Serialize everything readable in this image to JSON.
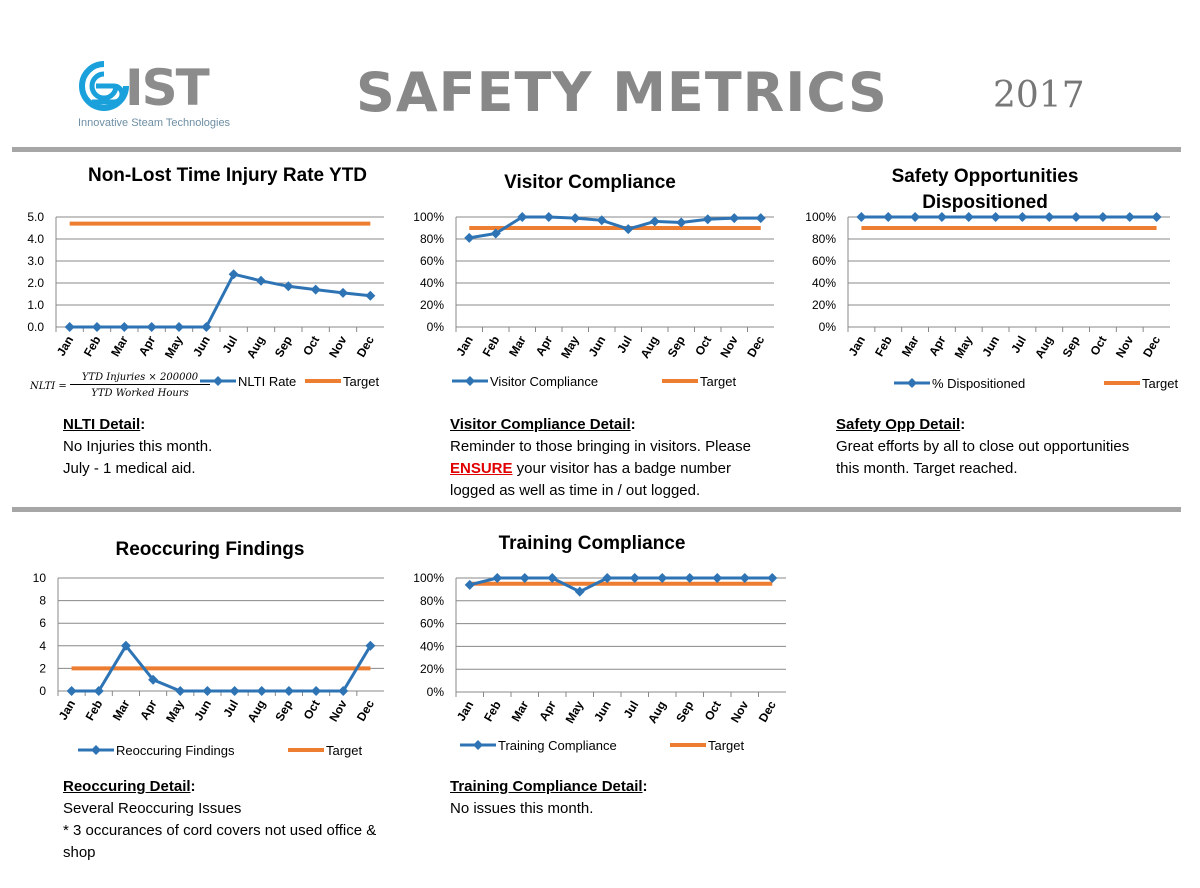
{
  "header": {
    "logo_word": "IST",
    "logo_subtitle": "Innovative Steam Technologies",
    "title": "SAFETY METRICS",
    "year": "2017"
  },
  "colors": {
    "series": "#2e74b5",
    "target": "#ed7d31",
    "grid": "#888888",
    "divider": "#a6a6a6"
  },
  "formula": {
    "lhs": "NLTI =",
    "numerator": "YTD Injuries × 200000",
    "denominator": "YTD Worked Hours"
  },
  "details": {
    "nlti": {
      "heading": "NLTI Detail",
      "lines": [
        "No Injuries this month.",
        "July - 1 medical aid."
      ]
    },
    "visitor": {
      "heading": "Visitor Compliance Detail",
      "line1": "Reminder to those bringing in visitors. Please",
      "emph": "ENSURE",
      "line2_rest": " your visitor has a badge number",
      "line3": "logged as well as time in / out logged."
    },
    "safety": {
      "heading": "Safety Opp Detail",
      "lines": [
        "Great efforts by all to close out opportunities",
        "this month. Target reached."
      ]
    },
    "reoccur": {
      "heading": "Reoccuring Detail",
      "lines": [
        "Several Reoccuring Issues",
        "* 3 occurances of cord covers not used office &",
        "shop"
      ]
    },
    "training": {
      "heading": "Training Compliance Detail",
      "lines": [
        "No issues this month."
      ]
    }
  },
  "chart_data": [
    {
      "type": "line",
      "title": "Non-Lost Time Injury Rate YTD",
      "categories": [
        "Jan",
        "Feb",
        "Mar",
        "Apr",
        "May",
        "Jun",
        "Jul",
        "Aug",
        "Sep",
        "Oct",
        "Nov",
        "Dec"
      ],
      "yticks": [
        "0.0",
        "1.0",
        "2.0",
        "3.0",
        "4.0",
        "5.0"
      ],
      "ylim": [
        0,
        5
      ],
      "series": [
        {
          "name": "NLTI Rate",
          "values": [
            0,
            0,
            0,
            0,
            0,
            0,
            2.4,
            2.1,
            1.85,
            1.7,
            1.55,
            1.42
          ]
        },
        {
          "name": "Target",
          "values": [
            4.7,
            4.7,
            4.7,
            4.7,
            4.7,
            4.7,
            4.7,
            4.7,
            4.7,
            4.7,
            4.7,
            4.7
          ]
        }
      ],
      "legend": "bottom"
    },
    {
      "type": "line",
      "title": "Visitor Compliance",
      "categories": [
        "Jan",
        "Feb",
        "Mar",
        "Apr",
        "May",
        "Jun",
        "Jul",
        "Aug",
        "Sep",
        "Oct",
        "Nov",
        "Dec"
      ],
      "yticks": [
        "0%",
        "20%",
        "40%",
        "60%",
        "80%",
        "100%"
      ],
      "ylim": [
        0,
        100
      ],
      "series": [
        {
          "name": "Visitor Compliance",
          "values": [
            81,
            85,
            100,
            100,
            99,
            97,
            89,
            96,
            95,
            98,
            99,
            99
          ]
        },
        {
          "name": "Target",
          "values": [
            90,
            90,
            90,
            90,
            90,
            90,
            90,
            90,
            90,
            90,
            90,
            90
          ]
        }
      ],
      "legend": "bottom"
    },
    {
      "type": "line",
      "title": "Safety Opportunities Dispositioned",
      "categories": [
        "Jan",
        "Feb",
        "Mar",
        "Apr",
        "May",
        "Jun",
        "Jul",
        "Aug",
        "Sep",
        "Oct",
        "Nov",
        "Dec"
      ],
      "yticks": [
        "0%",
        "20%",
        "40%",
        "60%",
        "80%",
        "100%"
      ],
      "ylim": [
        0,
        100
      ],
      "series": [
        {
          "name": "% Dispositioned",
          "values": [
            100,
            100,
            100,
            100,
            100,
            100,
            100,
            100,
            100,
            100,
            100,
            100
          ]
        },
        {
          "name": "Target",
          "values": [
            90,
            90,
            90,
            90,
            90,
            90,
            90,
            90,
            90,
            90,
            90,
            90
          ]
        }
      ],
      "legend": "bottom"
    },
    {
      "type": "line",
      "title": "Reoccuring Findings",
      "categories": [
        "Jan",
        "Feb",
        "Mar",
        "Apr",
        "May",
        "Jun",
        "Jul",
        "Aug",
        "Sep",
        "Oct",
        "Nov",
        "Dec"
      ],
      "yticks": [
        "0",
        "2",
        "4",
        "6",
        "8",
        "10"
      ],
      "ylim": [
        0,
        10
      ],
      "series": [
        {
          "name": "Reoccuring Findings",
          "values": [
            0,
            0,
            4,
            1,
            0,
            0,
            0,
            0,
            0,
            0,
            0,
            4
          ]
        },
        {
          "name": "Target",
          "values": [
            2,
            2,
            2,
            2,
            2,
            2,
            2,
            2,
            2,
            2,
            2,
            2
          ]
        }
      ],
      "legend": "bottom"
    },
    {
      "type": "line",
      "title": "Training Compliance",
      "categories": [
        "Jan",
        "Feb",
        "Mar",
        "Apr",
        "May",
        "Jun",
        "Jul",
        "Aug",
        "Sep",
        "Oct",
        "Nov",
        "Dec"
      ],
      "yticks": [
        "0%",
        "20%",
        "40%",
        "60%",
        "80%",
        "100%"
      ],
      "ylim": [
        0,
        100
      ],
      "series": [
        {
          "name": "Training Compliance",
          "values": [
            94,
            100,
            100,
            100,
            88,
            100,
            100,
            100,
            100,
            100,
            100,
            100
          ]
        },
        {
          "name": "Target",
          "values": [
            95,
            95,
            95,
            95,
            95,
            95,
            95,
            95,
            95,
            95,
            95,
            95
          ]
        }
      ],
      "legend": "bottom"
    }
  ]
}
